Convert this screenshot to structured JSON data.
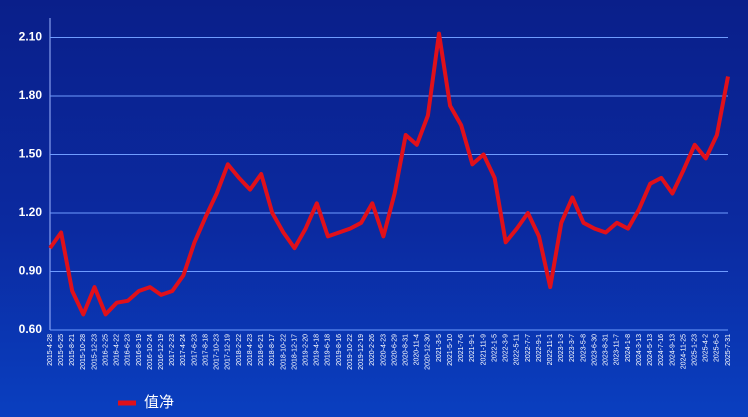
{
  "chart_data": {
    "type": "line",
    "categories": [
      "2015-4-28",
      "2015-6-25",
      "2015-8-21",
      "2015-10-28",
      "2015-12-23",
      "2016-2-25",
      "2016-4-22",
      "2016-6-23",
      "2016-8-19",
      "2016-10-24",
      "2016-12-19",
      "2017-2-23",
      "2017-4-24",
      "2017-6-23",
      "2017-8-18",
      "2017-10-23",
      "2017-12-19",
      "2018-2-22",
      "2018-4-23",
      "2018-6-21",
      "2018-8-17",
      "2018-10-22",
      "2018-12-17",
      "2019-2-20",
      "2019-4-18",
      "2019-6-18",
      "2019-8-16",
      "2019-10-22",
      "2019-12-19",
      "2020-2-26",
      "2020-4-23",
      "2020-6-29",
      "2020-8-31",
      "2020-11-4",
      "2020-12-30",
      "2021-3-5",
      "2021-5-10",
      "2021-7-6",
      "2021-9-1",
      "2021-11-9",
      "2022-1-5",
      "2022-3-9",
      "2022-5-11",
      "2022-7-7",
      "2022-9-1",
      "2022-11-1",
      "2023-1-3",
      "2023-3-7",
      "2023-5-8",
      "2023-6-30",
      "2023-8-31",
      "2023-11-7",
      "2024-1-8",
      "2024-3-13",
      "2024-5-13",
      "2024-7-16",
      "2024-9-13",
      "2024-11-25",
      "2025-1-23",
      "2025-4-2",
      "2025-6-5",
      "2025-7-31"
    ],
    "series": [
      {
        "name": "值净",
        "color": "#e0101a",
        "values": [
          1.02,
          1.1,
          0.8,
          0.68,
          0.82,
          0.68,
          0.74,
          0.75,
          0.8,
          0.82,
          0.78,
          0.8,
          0.88,
          1.05,
          1.18,
          1.3,
          1.45,
          1.38,
          1.32,
          1.4,
          1.2,
          1.1,
          1.02,
          1.12,
          1.25,
          1.08,
          1.1,
          1.12,
          1.15,
          1.25,
          1.08,
          1.3,
          1.6,
          1.55,
          1.7,
          2.12,
          1.75,
          1.65,
          1.45,
          1.5,
          1.38,
          1.05,
          1.12,
          1.2,
          1.08,
          0.82,
          1.15,
          1.28,
          1.15,
          1.12,
          1.1,
          1.15,
          1.12,
          1.22,
          1.35,
          1.38,
          1.3,
          1.42,
          1.55,
          1.48,
          1.6,
          1.9
        ]
      }
    ],
    "ylim": [
      0.6,
      2.2
    ],
    "yticks": [
      {
        "value": 0.6,
        "label": "0.60"
      },
      {
        "value": 0.9,
        "label": "0.90"
      },
      {
        "value": 1.2,
        "label": "1.20"
      },
      {
        "value": 1.5,
        "label": "1.50"
      },
      {
        "value": 1.8,
        "label": "1.80"
      },
      {
        "value": 2.1,
        "label": "2.10"
      }
    ],
    "grid": true
  }
}
